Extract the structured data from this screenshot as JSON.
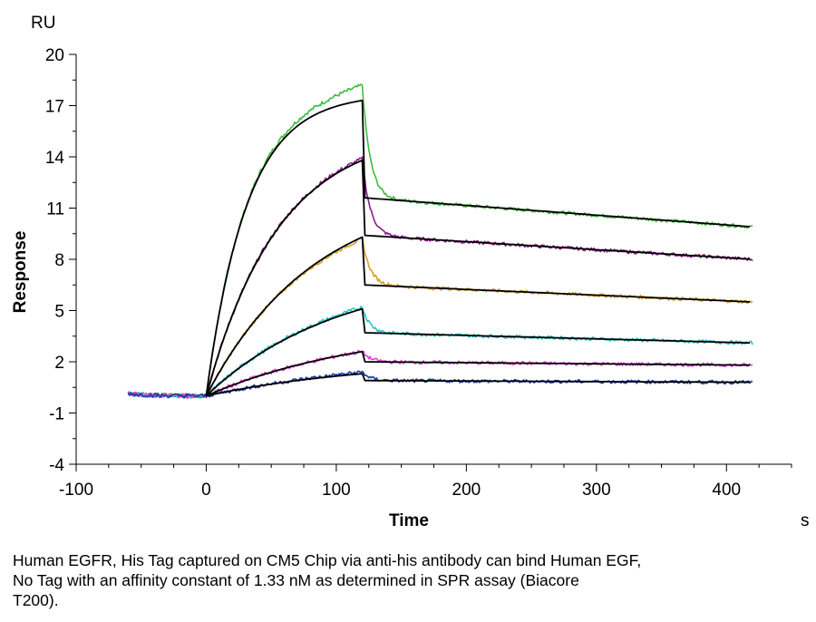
{
  "chart_data": {
    "type": "line",
    "y_unit": "RU",
    "x_unit": "s",
    "xlabel": "Time",
    "ylabel": "Response",
    "xlim": [
      -100,
      450
    ],
    "ylim": [
      -4,
      20
    ],
    "x_ticks": [
      -100,
      0,
      100,
      200,
      300,
      400
    ],
    "y_ticks": [
      -4,
      -1,
      2,
      5,
      8,
      11,
      14,
      17,
      20
    ],
    "grid": false,
    "association_start": 0,
    "dissociation_start": 120,
    "baseline_start": -60,
    "end_time": 420,
    "curves": [
      {
        "color": "#3ebd3e",
        "fit_peak": 17.3,
        "data_peak": 18.2,
        "dissociation_start_value": 11.6,
        "end_value": 9.9,
        "rise_rate": 0.032
      },
      {
        "color": "#8a1e8a",
        "fit_peak": 13.8,
        "data_peak": 13.9,
        "dissociation_start_value": 9.4,
        "end_value": 8.0,
        "rise_rate": 0.018
      },
      {
        "color": "#d4a030",
        "fit_peak": 9.3,
        "data_peak": 9.2,
        "dissociation_start_value": 6.5,
        "end_value": 5.5,
        "rise_rate": 0.012
      },
      {
        "color": "#26c4c4",
        "fit_peak": 5.1,
        "data_peak": 5.2,
        "dissociation_start_value": 3.7,
        "end_value": 3.1,
        "rise_rate": 0.01
      },
      {
        "color": "#e043d8",
        "fit_peak": 2.6,
        "data_peak": 2.6,
        "dissociation_start_value": 2.0,
        "end_value": 1.8,
        "rise_rate": 0.008
      },
      {
        "color": "#1a3aa8",
        "fit_peak": 1.3,
        "data_peak": 1.4,
        "dissociation_start_value": 0.9,
        "end_value": 0.8,
        "rise_rate": 0.008
      }
    ]
  },
  "caption": {
    "line1": "Human EGFR, His Tag captured on CM5 Chip via anti-his antibody can bind Human EGF,",
    "line2": "No Tag with an affinity constant of 1.33 nM as determined in SPR assay (Biacore",
    "line3": "T200)."
  }
}
